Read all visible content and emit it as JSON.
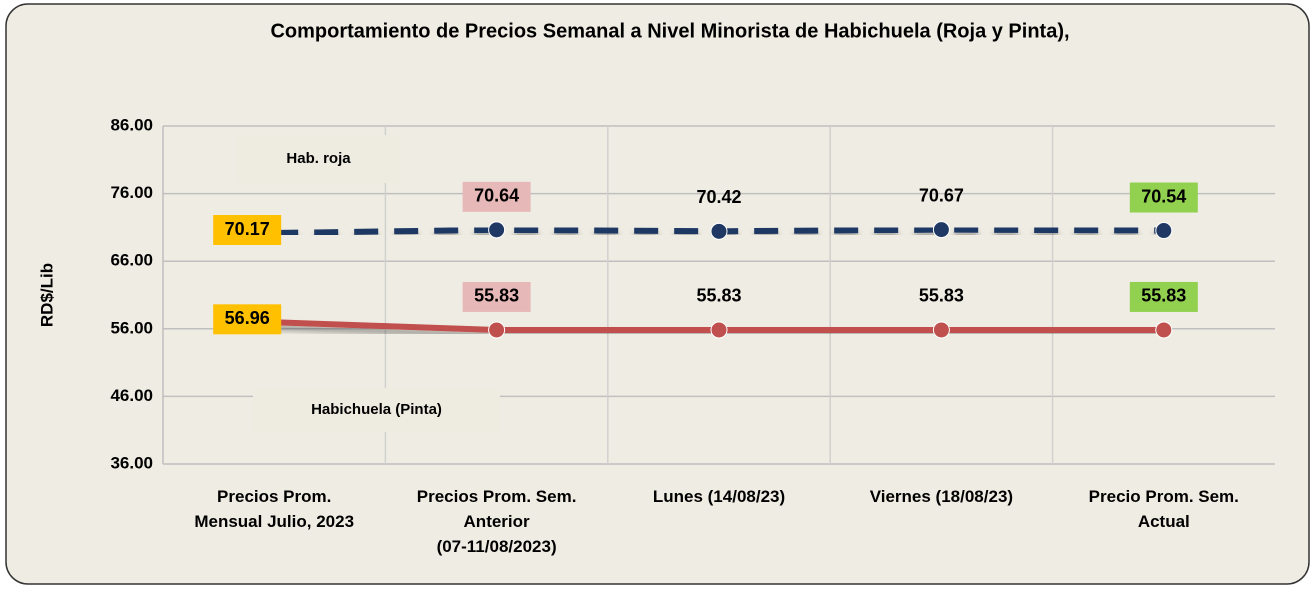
{
  "chart_data": {
    "type": "line",
    "title": "Comportamiento de Precios Semanal a Nivel Minorista de Habichuela (Roja  y Pinta),",
    "y_label": "RD$/Lib",
    "categories": [
      "Precios Prom.\nMensual Julio, 2023",
      "Precios Prom. Sem.\nAnterior\n(07-11/08/2023)",
      "Lunes  (14/08/23)",
      "Viernes  (18/08/23)",
      "Precio Prom. Sem.\nActual"
    ],
    "series": [
      {
        "name": "Hab. roja",
        "color": "#1f3864",
        "dashed": true,
        "values": [
          70.17,
          70.64,
          70.42,
          70.67,
          70.54
        ]
      },
      {
        "name": "Habichuela (Pinta)",
        "color": "#c0504d",
        "dashed": false,
        "values": [
          56.96,
          55.83,
          55.83,
          55.83,
          55.83
        ]
      }
    ],
    "label_backgrounds": [
      "#ffc000",
      "#e6b8b7",
      null,
      null,
      "#92d050"
    ],
    "ylim": [
      36,
      86
    ],
    "yticks": [
      {
        "value": 36,
        "label": "36.00"
      },
      {
        "value": 46,
        "label": "46.00"
      },
      {
        "value": 56,
        "label": "56.00"
      },
      {
        "value": 66,
        "label": "66.00"
      },
      {
        "value": 76,
        "label": "76.00"
      },
      {
        "value": 86,
        "label": "86.00"
      }
    ],
    "grid": true
  }
}
